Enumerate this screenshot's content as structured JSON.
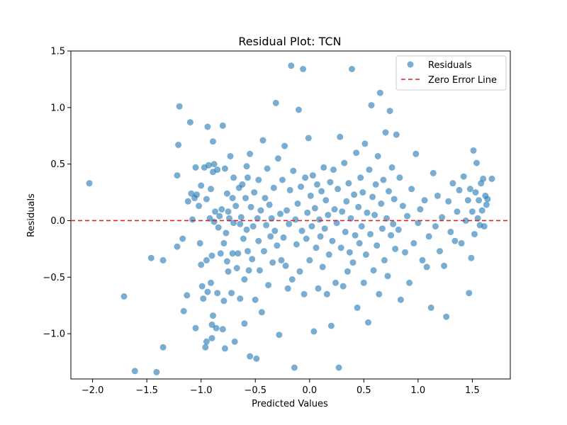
{
  "chart_data": {
    "type": "scatter",
    "title": "Residual Plot: TCN",
    "xlabel": "Predicted Values",
    "ylabel": "Residuals",
    "xlim": [
      -2.2,
      1.85
    ],
    "ylim": [
      -1.4,
      1.5
    ],
    "x_ticks": [
      -2.0,
      -1.5,
      -1.0,
      -0.5,
      0.0,
      0.5,
      1.0,
      1.5
    ],
    "x_tick_labels": [
      "−2.0",
      "−1.5",
      "−1.0",
      "−0.5",
      "0.0",
      "0.5",
      "1.0",
      "1.5"
    ],
    "y_ticks": [
      -1.0,
      -0.5,
      0.0,
      0.5,
      1.0,
      1.5
    ],
    "y_tick_labels": [
      "−1.0",
      "−0.5",
      "0.0",
      "0.5",
      "1.0",
      "1.5"
    ],
    "grid": false,
    "legend_position": "top-right",
    "series": [
      {
        "name": "Residuals",
        "color": "#1f77b4",
        "points": [
          [
            -2.03,
            0.33
          ],
          [
            -1.71,
            -0.67
          ],
          [
            -1.61,
            -1.33
          ],
          [
            -1.46,
            -0.33
          ],
          [
            -1.41,
            -1.34
          ],
          [
            -1.35,
            -0.35
          ],
          [
            -1.35,
            -1.12
          ],
          [
            -1.22,
            -0.23
          ],
          [
            -1.22,
            0.4
          ],
          [
            -1.21,
            0.67
          ],
          [
            -1.2,
            1.01
          ],
          [
            -1.17,
            -0.16
          ],
          [
            -1.16,
            -0.8
          ],
          [
            -1.13,
            -0.66
          ],
          [
            -1.12,
            0.17
          ],
          [
            -1.1,
            0.87
          ],
          [
            -1.09,
            0.24
          ],
          [
            -1.08,
            0.01
          ],
          [
            -1.06,
            0.2
          ],
          [
            -1.05,
            -0.95
          ],
          [
            -1.05,
            0.47
          ],
          [
            -1.04,
            0.23
          ],
          [
            -1.02,
            0.13
          ],
          [
            -1.01,
            -0.2
          ],
          [
            -1.0,
            0.31
          ],
          [
            -1.0,
            -0.39
          ],
          [
            -0.99,
            -0.58
          ],
          [
            -0.98,
            -0.69
          ],
          [
            -0.97,
            0.47
          ],
          [
            -0.96,
            -1.12
          ],
          [
            -0.95,
            -0.35
          ],
          [
            -0.95,
            0.19
          ],
          [
            -0.95,
            -1.07
          ],
          [
            -0.94,
            -0.63
          ],
          [
            -0.94,
            0.83
          ],
          [
            -0.93,
            0.49
          ],
          [
            -0.92,
            0.02
          ],
          [
            -0.91,
            -0.55
          ],
          [
            -0.91,
            0.28
          ],
          [
            -0.9,
            -0.31
          ],
          [
            -0.9,
            -0.92
          ],
          [
            -0.9,
            -1.04
          ],
          [
            -0.89,
            0.7
          ],
          [
            -0.89,
            -0.84
          ],
          [
            -0.89,
            0.43
          ],
          [
            -0.88,
            -0.01
          ],
          [
            -0.88,
            0.5
          ],
          [
            -0.87,
            0.08
          ],
          [
            -0.86,
            -0.95
          ],
          [
            -0.85,
            -0.64
          ],
          [
            -0.85,
            0.45
          ],
          [
            -0.84,
            -0.06
          ],
          [
            -0.83,
            0.04
          ],
          [
            -0.82,
            -0.29
          ],
          [
            -0.81,
            0.1
          ],
          [
            -0.8,
            -0.96
          ],
          [
            -0.8,
            0.84
          ],
          [
            -0.79,
            -0.71
          ],
          [
            -0.79,
            -0.2
          ],
          [
            -0.78,
            -1.13
          ],
          [
            -0.78,
            0.46
          ],
          [
            -0.77,
            -0.11
          ],
          [
            -0.76,
            0.24
          ],
          [
            -0.76,
            -0.36
          ],
          [
            -0.75,
            0.08
          ],
          [
            -0.75,
            -0.45
          ],
          [
            -0.74,
            0.02
          ],
          [
            -0.73,
            0.57
          ],
          [
            -0.72,
            -0.64
          ],
          [
            -0.71,
            0.2
          ],
          [
            -0.71,
            -0.29
          ],
          [
            -0.7,
            -0.02
          ],
          [
            -0.7,
            0.38
          ],
          [
            -0.69,
            -1.07
          ],
          [
            -0.68,
            0.13
          ],
          [
            -0.67,
            -0.42
          ],
          [
            -0.66,
            -0.29
          ],
          [
            -0.65,
            0.29
          ],
          [
            -0.64,
            -0.69
          ],
          [
            -0.64,
            -0.03
          ],
          [
            -0.63,
            0.03
          ],
          [
            -0.62,
            0.32
          ],
          [
            -0.61,
            -0.16
          ],
          [
            -0.6,
            -0.52
          ],
          [
            -0.6,
            -0.91
          ],
          [
            -0.59,
            0.2
          ],
          [
            -0.58,
            0.48
          ],
          [
            -0.58,
            -0.08
          ],
          [
            -0.57,
            0.38
          ],
          [
            -0.57,
            -0.27
          ],
          [
            -0.56,
            -0.44
          ],
          [
            -0.55,
            0.59
          ],
          [
            -0.55,
            -1.2
          ],
          [
            -0.54,
            0.12
          ],
          [
            -0.53,
            -0.34
          ],
          [
            -0.52,
            -0.05
          ],
          [
            -0.51,
            0.25
          ],
          [
            -0.5,
            -0.7
          ],
          [
            -0.49,
            -1.22
          ],
          [
            -0.48,
            0.02
          ],
          [
            -0.47,
            0.36
          ],
          [
            -0.47,
            -0.18
          ],
          [
            -0.46,
            -0.44
          ],
          [
            -0.45,
            0.09
          ],
          [
            -0.44,
            -0.81
          ],
          [
            -0.43,
            0.71
          ],
          [
            -0.42,
            -0.27
          ],
          [
            -0.41,
            0.2
          ],
          [
            -0.4,
            -0.04
          ],
          [
            -0.39,
            0.46
          ],
          [
            -0.38,
            -0.57
          ],
          [
            -0.37,
            0.14
          ],
          [
            -0.36,
            -0.14
          ],
          [
            -0.35,
            0.02
          ],
          [
            -0.34,
            -0.37
          ],
          [
            -0.33,
            0.29
          ],
          [
            -0.32,
            -0.09
          ],
          [
            -0.31,
            1.04
          ],
          [
            -0.3,
            -0.22
          ],
          [
            -0.29,
            0.55
          ],
          [
            -0.28,
            -1.01
          ],
          [
            -0.27,
            0.06
          ],
          [
            -0.26,
            -0.35
          ],
          [
            -0.25,
            0.36
          ],
          [
            -0.24,
            -0.15
          ],
          [
            -0.23,
            0.66
          ],
          [
            -0.22,
            -0.4
          ],
          [
            -0.21,
            0.09
          ],
          [
            -0.2,
            -0.6
          ],
          [
            -0.19,
            -0.03
          ],
          [
            -0.18,
            0.27
          ],
          [
            -0.17,
            1.37
          ],
          [
            -0.16,
            -0.52
          ],
          [
            -0.15,
            0.44
          ],
          [
            -0.14,
            -1.3
          ],
          [
            -0.13,
            0.01
          ],
          [
            -0.12,
            -0.21
          ],
          [
            -0.11,
            0.15
          ],
          [
            -0.1,
            0.98
          ],
          [
            -0.09,
            -0.45
          ],
          [
            -0.08,
            0.3
          ],
          [
            -0.07,
            -0.09
          ],
          [
            -0.06,
            1.34
          ],
          [
            -0.05,
            -0.65
          ],
          [
            -0.04,
            0.38
          ],
          [
            -0.03,
            -0.16
          ],
          [
            -0.02,
            0.07
          ],
          [
            -0.01,
            0.73
          ],
          [
            0.0,
            -0.35
          ],
          [
            0.01,
            0.22
          ],
          [
            0.02,
            -0.05
          ],
          [
            0.03,
            0.4
          ],
          [
            0.04,
            -0.98
          ],
          [
            0.05,
            0.11
          ],
          [
            0.06,
            -0.24
          ],
          [
            0.07,
            0.32
          ],
          [
            0.08,
            -0.6
          ],
          [
            0.09,
            0.01
          ],
          [
            0.1,
            -0.14
          ],
          [
            0.11,
            0.26
          ],
          [
            0.12,
            -0.41
          ],
          [
            0.13,
            0.47
          ],
          [
            0.14,
            -0.07
          ],
          [
            0.15,
            0.18
          ],
          [
            0.16,
            -0.65
          ],
          [
            0.17,
            0.05
          ],
          [
            0.18,
            -0.3
          ],
          [
            0.19,
            0.34
          ],
          [
            0.2,
            -0.93
          ],
          [
            0.21,
            -0.18
          ],
          [
            0.22,
            0.45
          ],
          [
            0.23,
            0.1
          ],
          [
            0.24,
            -0.55
          ],
          [
            0.25,
            -0.02
          ],
          [
            0.26,
            0.28
          ],
          [
            0.27,
            -1.3
          ],
          [
            0.28,
            0.74
          ],
          [
            0.29,
            -0.24
          ],
          [
            0.3,
            0.08
          ],
          [
            0.31,
            -0.58
          ],
          [
            0.32,
            0.51
          ],
          [
            0.33,
            -0.1
          ],
          [
            0.34,
            0.17
          ],
          [
            0.35,
            -0.45
          ],
          [
            0.36,
            0.33
          ],
          [
            0.37,
            -0.28
          ],
          [
            0.38,
            0.02
          ],
          [
            0.39,
            1.34
          ],
          [
            0.4,
            -0.37
          ],
          [
            0.41,
            0.23
          ],
          [
            0.42,
            -0.13
          ],
          [
            0.43,
            0.6
          ],
          [
            0.44,
            -0.77
          ],
          [
            0.45,
            0.12
          ],
          [
            0.46,
            -0.2
          ],
          [
            0.47,
            0.38
          ],
          [
            0.48,
            -0.05
          ],
          [
            0.49,
            0.25
          ],
          [
            0.5,
            -0.55
          ],
          [
            0.51,
            0.68
          ],
          [
            0.52,
            -0.3
          ],
          [
            0.53,
            0.07
          ],
          [
            0.54,
            -0.9
          ],
          [
            0.55,
            0.45
          ],
          [
            0.56,
            -0.12
          ],
          [
            0.57,
            1.02
          ],
          [
            0.58,
            0.21
          ],
          [
            0.59,
            -0.44
          ],
          [
            0.6,
            0.05
          ],
          [
            0.61,
            0.32
          ],
          [
            0.62,
            -0.22
          ],
          [
            0.63,
            0.57
          ],
          [
            0.64,
            -0.65
          ],
          [
            0.65,
            1.13
          ],
          [
            0.66,
            0.15
          ],
          [
            0.67,
            -0.07
          ],
          [
            0.68,
            0.36
          ],
          [
            0.69,
            -0.35
          ],
          [
            0.7,
            0.78
          ],
          [
            0.71,
            0.02
          ],
          [
            0.72,
            -0.49
          ],
          [
            0.73,
            0.26
          ],
          [
            0.74,
            0.97
          ],
          [
            0.75,
            -0.13
          ],
          [
            0.76,
            0.47
          ],
          [
            0.77,
            -0.03
          ],
          [
            0.78,
            0.19
          ],
          [
            0.79,
            -0.25
          ],
          [
            0.8,
            0.76
          ],
          [
            0.82,
            -0.08
          ],
          [
            0.83,
            0.38
          ],
          [
            0.84,
            -0.7
          ],
          [
            0.86,
            0.13
          ],
          [
            0.88,
            -0.28
          ],
          [
            0.9,
            0.04
          ],
          [
            0.92,
            -0.55
          ],
          [
            0.94,
            0.28
          ],
          [
            0.96,
            -0.2
          ],
          [
            0.98,
            0.59
          ],
          [
            1.0,
            -0.02
          ],
          [
            1.02,
            0.1
          ],
          [
            1.04,
            -0.35
          ],
          [
            1.06,
            0.18
          ],
          [
            1.08,
            -0.41
          ],
          [
            1.1,
            -0.14
          ],
          [
            1.12,
            -0.77
          ],
          [
            1.14,
            0.42
          ],
          [
            1.16,
            -0.05
          ],
          [
            1.18,
            0.22
          ],
          [
            1.2,
            -0.27
          ],
          [
            1.22,
            0.03
          ],
          [
            1.24,
            -0.4
          ],
          [
            1.26,
            -0.85
          ],
          [
            1.28,
            0.17
          ],
          [
            1.3,
            -0.1
          ],
          [
            1.32,
            0.33
          ],
          [
            1.34,
            -0.18
          ],
          [
            1.36,
            0.08
          ],
          [
            1.38,
            0.27
          ],
          [
            1.4,
            -0.2
          ],
          [
            1.42,
            0.39
          ],
          [
            1.44,
            0.0
          ],
          [
            1.46,
            0.18
          ],
          [
            1.47,
            -0.64
          ],
          [
            1.48,
            0.28
          ],
          [
            1.49,
            -0.33
          ],
          [
            1.5,
            0.08
          ],
          [
            1.51,
            0.62
          ],
          [
            1.52,
            -0.12
          ],
          [
            1.53,
            0.25
          ],
          [
            1.54,
            0.51
          ],
          [
            1.55,
            0.02
          ],
          [
            1.56,
            0.18
          ],
          [
            1.57,
            -0.04
          ],
          [
            1.58,
            0.33
          ],
          [
            1.59,
            0.09
          ],
          [
            1.6,
            0.37
          ],
          [
            1.61,
            -0.05
          ],
          [
            1.62,
            0.22
          ],
          [
            1.63,
            0.14
          ],
          [
            1.64,
            0.19
          ],
          [
            1.68,
            0.37
          ]
        ]
      },
      {
        "name": "Zero Error Line",
        "color": "#d62728",
        "y": 0
      }
    ]
  }
}
